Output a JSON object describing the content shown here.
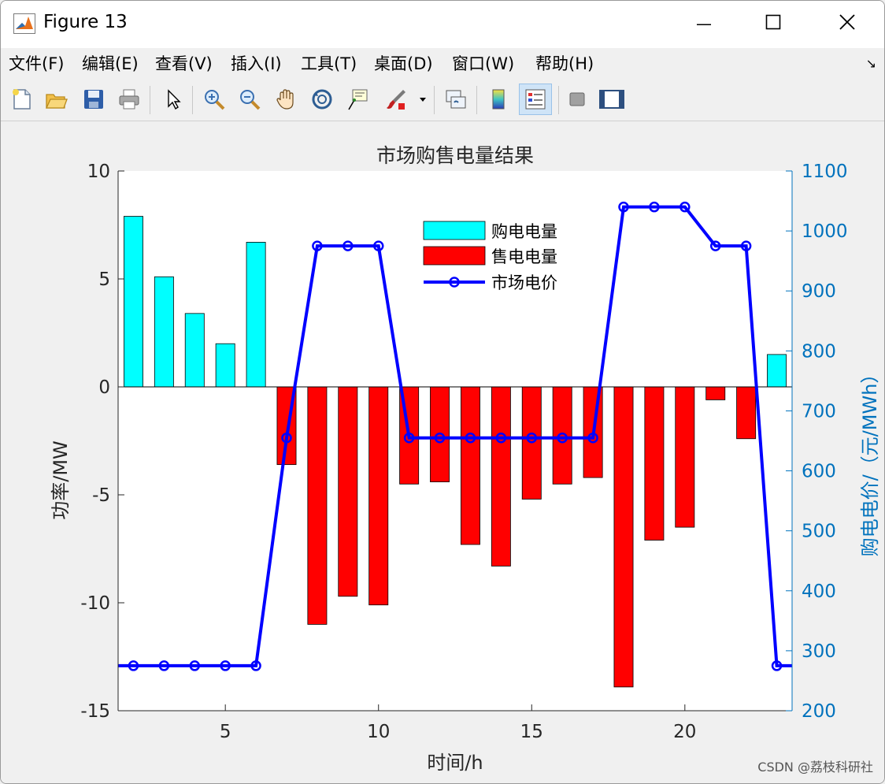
{
  "window": {
    "title": "Figure 13",
    "minimize_glyph": "—",
    "maximize_glyph": "☐",
    "close_glyph": "✕"
  },
  "menu": {
    "items": [
      "文件(F)",
      "编辑(E)",
      "查看(V)",
      "插入(I)",
      "工具(T)",
      "桌面(D)",
      "窗口(W)",
      "帮助(H)"
    ],
    "overflow_glyph": "↘"
  },
  "toolbar": {
    "icons": [
      "new-figure-icon",
      "open-file-icon",
      "save-icon",
      "print-icon",
      "select-arrow-icon",
      "zoom-in-icon",
      "zoom-out-icon",
      "pan-hand-icon",
      "rotate-3d-icon",
      "data-cursor-icon",
      "brush-icon",
      "link-plot-icon",
      "colorbar-icon",
      "legend-icon",
      "hide-plot-tools-icon",
      "show-plot-tools-icon"
    ]
  },
  "colors": {
    "buy_bar": "#00ffff",
    "sell_bar": "#ff0000",
    "price_line": "#0000ff",
    "right_axis": "#0072bd"
  },
  "chart_data": {
    "type": "bar",
    "title": "市场购售电量结果",
    "xlabel": "时间/h",
    "ylabel": "功率/MW",
    "ylabel_right": "购电电价/（元/MWh）",
    "xlim": [
      1.5,
      23.5
    ],
    "ylim": [
      -15,
      10
    ],
    "ylim_right": [
      200,
      1100
    ],
    "x_ticks": [
      5,
      10,
      15,
      20
    ],
    "y_ticks": [
      -15,
      -10,
      -5,
      0,
      5,
      10
    ],
    "y_ticks_right": [
      200,
      300,
      400,
      500,
      600,
      700,
      800,
      900,
      1000,
      1100
    ],
    "grid": false,
    "legend_position": "top-center",
    "x": [
      2,
      3,
      4,
      5,
      6,
      7,
      8,
      9,
      10,
      11,
      12,
      13,
      14,
      15,
      16,
      17,
      18,
      19,
      20,
      21,
      22,
      23
    ],
    "series": [
      {
        "name": "购电电量",
        "type": "bar",
        "values": [
          7.9,
          5.1,
          3.4,
          2.0,
          6.7,
          0,
          0,
          0,
          0,
          0,
          0,
          0,
          0,
          0,
          0,
          0,
          0,
          0,
          0,
          0,
          0,
          1.5
        ]
      },
      {
        "name": "售电电量",
        "type": "bar",
        "values": [
          0,
          0,
          0,
          0,
          0,
          -3.6,
          -11.0,
          -9.7,
          -10.1,
          -4.5,
          -4.4,
          -7.3,
          -8.3,
          -5.2,
          -4.5,
          -4.2,
          -13.9,
          -7.1,
          -6.5,
          -0.6,
          -2.4,
          0
        ]
      },
      {
        "name": "市场电价",
        "type": "line",
        "axis": "right",
        "values": [
          275,
          275,
          275,
          275,
          275,
          655,
          975,
          975,
          975,
          655,
          655,
          655,
          655,
          655,
          655,
          655,
          1040,
          1040,
          1040,
          975,
          975,
          275
        ]
      }
    ]
  },
  "watermark": "CSDN @荔枝科研社"
}
